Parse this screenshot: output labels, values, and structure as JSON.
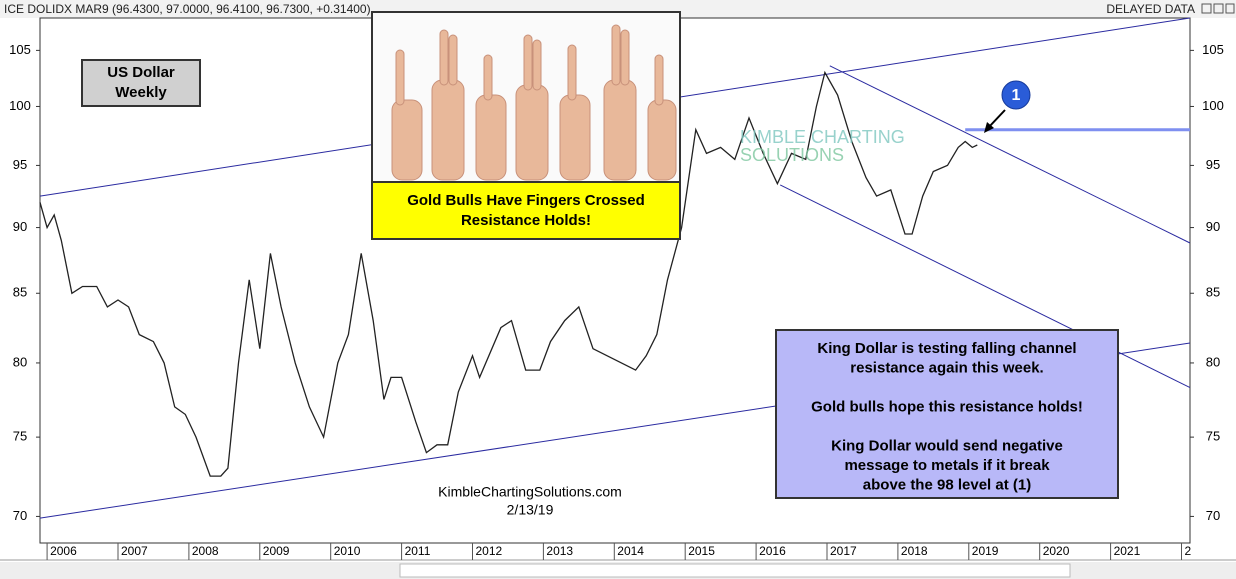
{
  "chart_data": {
    "type": "line",
    "header": "ICE DOLIDX MAR9 (96.4300, 97.0000, 96.4100, 96.7300, +0.31400)",
    "header_right": "DELAYED DATA",
    "title": [
      "US Dollar",
      "Weekly"
    ],
    "picture_caption": [
      "Gold Bulls Have Fingers Crossed",
      "Resistance Holds!"
    ],
    "watermark": [
      "KIMBLE CHARTING",
      "SOLUTIONS"
    ],
    "callout": "1",
    "note": [
      "King Dollar is testing falling channel",
      "resistance again this week.",
      "",
      "Gold bulls hope this resistance holds!",
      "",
      "King Dollar would send negative",
      "message to metals if it break",
      "above the 98 level at (1)"
    ],
    "source": [
      "KimbleChartingSolutions.com",
      "2/13/19"
    ],
    "color": "#222222",
    "log_scale": true,
    "x": [
      2005.9,
      2006.0,
      2006.1,
      2006.2,
      2006.35,
      2006.5,
      2006.7,
      2006.85,
      2007.0,
      2007.15,
      2007.3,
      2007.5,
      2007.65,
      2007.8,
      2007.95,
      2008.1,
      2008.3,
      2008.45,
      2008.55,
      2008.7,
      2008.85,
      2009.0,
      2009.15,
      2009.3,
      2009.5,
      2009.7,
      2009.9,
      2010.1,
      2010.25,
      2010.43,
      2010.6,
      2010.75,
      2010.85,
      2011.0,
      2011.2,
      2011.35,
      2011.5,
      2011.65,
      2011.8,
      2012.0,
      2012.1,
      2012.4,
      2012.55,
      2012.75,
      2012.95,
      2013.1,
      2013.3,
      2013.5,
      2013.7,
      2013.9,
      2014.1,
      2014.3,
      2014.45,
      2014.6,
      2014.75,
      2014.95,
      2015.15,
      2015.3,
      2015.5,
      2015.7,
      2015.9,
      2016.1,
      2016.3,
      2016.5,
      2016.7,
      2016.85,
      2016.97,
      2017.15,
      2017.35,
      2017.55,
      2017.7,
      2017.9,
      2018.1,
      2018.2,
      2018.35,
      2018.5,
      2018.7,
      2018.85,
      2018.95,
      2019.05,
      2019.12
    ],
    "values": [
      92,
      90,
      91,
      89,
      85,
      85.5,
      85.5,
      84,
      84.5,
      84,
      82,
      81.5,
      80,
      77,
      76.5,
      75,
      72.5,
      72.5,
      73,
      80,
      86,
      81,
      88,
      84,
      80,
      77,
      75,
      80,
      82,
      88,
      83,
      77.5,
      79,
      79,
      76,
      74,
      74.5,
      74.5,
      78,
      80.5,
      79,
      82.5,
      83,
      79.5,
      79.5,
      81.5,
      83,
      84,
      81,
      80.5,
      80,
      79.5,
      80.5,
      82,
      86,
      90,
      98,
      96,
      96.5,
      95.5,
      99,
      96,
      93.5,
      96,
      95.5,
      100,
      103,
      101,
      97,
      94,
      92.5,
      93,
      89.5,
      89.5,
      92.5,
      94.5,
      95,
      96.5,
      97,
      96.5,
      96.7
    ],
    "trendlines": [
      {
        "x": [
          2005.9,
          2022.12
        ],
        "values": [
          92.5,
          108
        ]
      },
      {
        "x": [
          2005.9,
          2022.12
        ],
        "values": [
          69.9,
          81.4
        ]
      },
      {
        "x": [
          2017.04,
          2022.12
        ],
        "values": [
          103.6,
          88.8
        ]
      },
      {
        "x": [
          2016.34,
          2022.12
        ],
        "values": [
          93.4,
          78.3
        ]
      }
    ],
    "resistance": {
      "x": [
        2018.95,
        2022.12
      ],
      "values": [
        98,
        98
      ]
    },
    "xlim": [
      2005.9,
      2022.12
    ],
    "xticks": [
      2006,
      2007,
      2008,
      2009,
      2010,
      2011,
      2012,
      2013,
      2014,
      2015,
      2016,
      2017,
      2018,
      2019,
      2020,
      2021,
      {
        "value": 2022,
        "label": "2"
      }
    ],
    "ylim": [
      68.4,
      108
    ],
    "yticks": [
      70,
      75,
      80,
      85,
      90,
      95,
      100,
      105
    ]
  }
}
